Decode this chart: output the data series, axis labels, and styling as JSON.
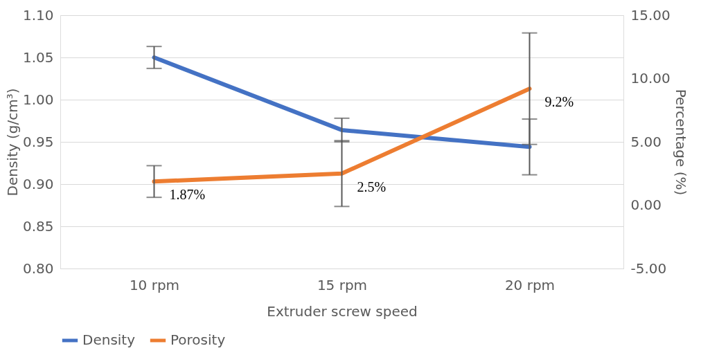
{
  "chart_data": {
    "type": "line",
    "xlabel": "Extruder screw speed",
    "ylabel": "Density (g/cm³)",
    "y2label": "Percentage (%)",
    "categories": [
      "10 rpm",
      "15 rpm",
      "20 rpm"
    ],
    "series": [
      {
        "name": "Density",
        "color": "#4472c4",
        "values": [
          1.05,
          0.964,
          0.944
        ],
        "errors": [
          0.013,
          0.014,
          0.033
        ]
      },
      {
        "name": "Porosity",
        "color": "#ed7d31",
        "axis": "y2",
        "values": [
          1.87,
          2.5,
          9.2
        ],
        "errors": [
          1.25,
          2.6,
          4.4
        ],
        "value_labels": [
          "1.87%",
          "2.5%",
          "9.2%"
        ]
      }
    ],
    "ylim": [
      0.8,
      1.1
    ],
    "yticks": [
      {
        "value": 0.8,
        "label": "0.80"
      },
      {
        "value": 0.85,
        "label": "0.85"
      },
      {
        "value": 0.9,
        "label": "0.90"
      },
      {
        "value": 0.95,
        "label": "0.95"
      },
      {
        "value": 1.0,
        "label": "1.00"
      },
      {
        "value": 1.05,
        "label": "1.05"
      },
      {
        "value": 1.1,
        "label": "1.10"
      }
    ],
    "y2lim": [
      -5,
      15
    ],
    "y2ticks": [
      {
        "value": -5,
        "label": "-5.00"
      },
      {
        "value": 0,
        "label": "0.00"
      },
      {
        "value": 5,
        "label": "5.00"
      },
      {
        "value": 10,
        "label": "10.00"
      },
      {
        "value": 15,
        "label": "15.00"
      }
    ],
    "grid": "y",
    "legend": "bottom",
    "marker": "none",
    "line_style": "solid"
  }
}
